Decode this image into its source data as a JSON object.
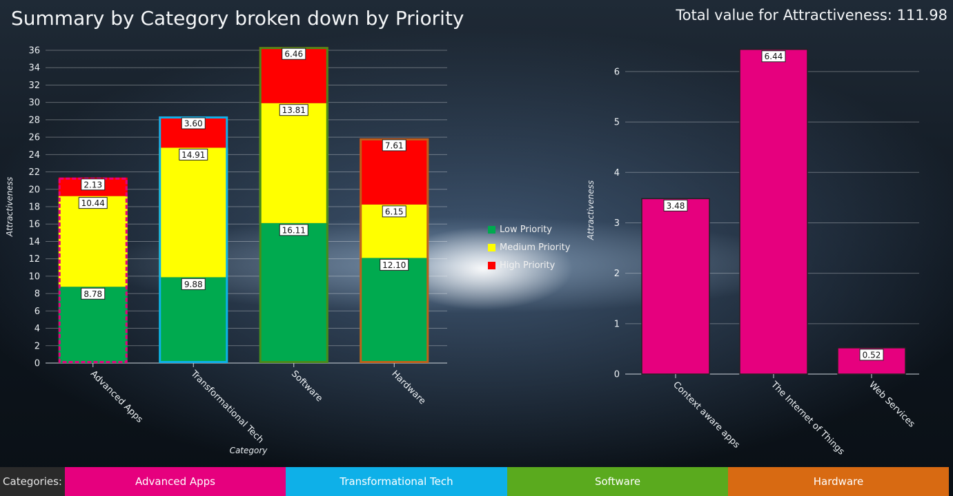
{
  "header": {
    "title": "Summary by Category broken down by Priority",
    "total_label": "Total value for Attractiveness: 111.98"
  },
  "legend": [
    {
      "label": "Low Priority",
      "color": "#00aa4f"
    },
    {
      "label": "Medium Priority",
      "color": "#ffff00"
    },
    {
      "label": "High Priority",
      "color": "#ff0000"
    }
  ],
  "footer": {
    "label": "Categories:",
    "categories": [
      {
        "label": "Advanced Apps",
        "color": "#e6007e"
      },
      {
        "label": "Transformational Tech",
        "color": "#0eb0e8"
      },
      {
        "label": "Software",
        "color": "#5aaa1e"
      },
      {
        "label": "Hardware",
        "color": "#d86a12"
      }
    ]
  },
  "chart_data": [
    {
      "type": "bar",
      "stacked": true,
      "title": "",
      "xlabel": "Category",
      "ylabel": "Attractiveness",
      "ylim": [
        0,
        36
      ],
      "yticks": [
        0,
        2,
        4,
        6,
        8,
        10,
        12,
        14,
        16,
        18,
        20,
        22,
        24,
        26,
        28,
        30,
        32,
        34,
        36
      ],
      "categories": [
        "Advanced Apps",
        "Transformational Tech",
        "Software",
        "Hardware"
      ],
      "category_colors": [
        "#e6007e",
        "#0eb0e8",
        "#4a8a1a",
        "#c0601a"
      ],
      "series": [
        {
          "name": "Low Priority",
          "color": "#00aa4f",
          "values": [
            8.78,
            9.88,
            16.11,
            12.1
          ],
          "labels": [
            "8.78",
            "9.88",
            "16.11",
            "12.10"
          ]
        },
        {
          "name": "Medium Priority",
          "color": "#ffff00",
          "values": [
            10.44,
            14.91,
            13.81,
            6.15
          ],
          "labels": [
            "10.44",
            "14.91",
            "13.81",
            "6.15"
          ]
        },
        {
          "name": "High Priority",
          "color": "#ff0000",
          "values": [
            2.13,
            3.6,
            6.46,
            7.61
          ],
          "labels": [
            "2.13",
            "3.60",
            "6.46",
            "7.61"
          ]
        }
      ],
      "legend": "right"
    },
    {
      "type": "bar",
      "title": "",
      "xlabel": "",
      "ylabel": "Attractiveness",
      "ylim": [
        0,
        6.6
      ],
      "yticks": [
        0,
        1,
        2,
        3,
        4,
        5,
        6
      ],
      "categories": [
        "Context aware apps",
        "The Internet of Things",
        "Web Services"
      ],
      "values": [
        3.48,
        6.44,
        0.52
      ],
      "labels": [
        "3.48",
        "6.44",
        "0.52"
      ],
      "color": "#e6007e"
    }
  ]
}
